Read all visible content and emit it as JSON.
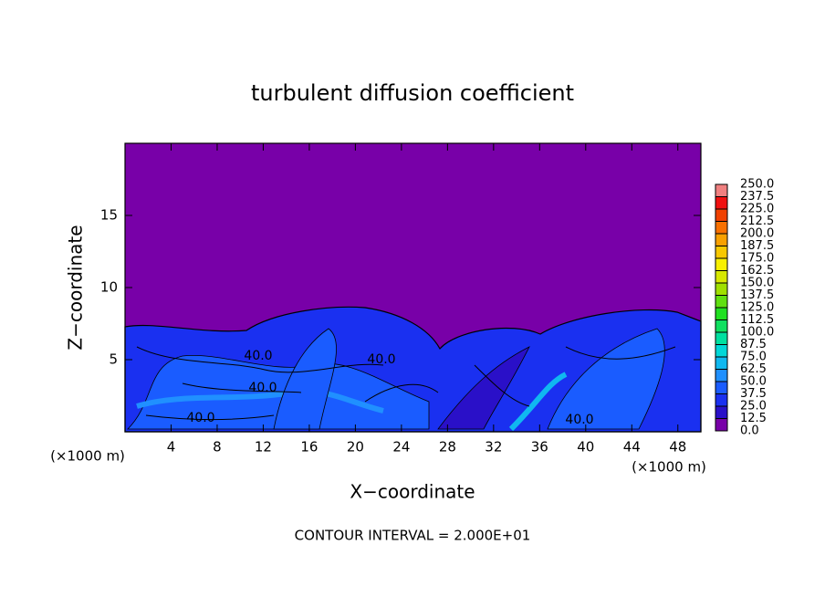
{
  "chart_data": {
    "type": "contour",
    "title": "turbulent diffusion coefficient",
    "xlabel": "X−coordinate",
    "ylabel": "Z−coordinate",
    "x_unit_label": "(×1000 m)",
    "footer": "CONTOUR INTERVAL = 2.000E+01",
    "xlim": [
      0,
      50
    ],
    "ylim": [
      0,
      20
    ],
    "xticks": [
      4,
      8,
      12,
      16,
      20,
      24,
      28,
      32,
      36,
      40,
      44,
      48
    ],
    "yticks": [
      5,
      10,
      15
    ],
    "contour_labels": [
      {
        "value": 40,
        "label": "40.0"
      },
      {
        "value": 40,
        "label": "40.0"
      },
      {
        "value": 40,
        "label": "40.0"
      },
      {
        "value": 40,
        "label": "40.0"
      },
      {
        "value": 40,
        "label": "40.0"
      }
    ],
    "colorbar": {
      "ticks": [
        {
          "value": 0,
          "label": "0.0"
        },
        {
          "value": 12.5,
          "label": "12.5"
        },
        {
          "value": 25,
          "label": "25.0"
        },
        {
          "value": 37.5,
          "label": "37.5"
        },
        {
          "value": 50,
          "label": "50.0"
        },
        {
          "value": 62.5,
          "label": "62.5"
        },
        {
          "value": 75,
          "label": "75.0"
        },
        {
          "value": 87.5,
          "label": "87.5"
        },
        {
          "value": 100,
          "label": "100.0"
        },
        {
          "value": 112.5,
          "label": "112.5"
        },
        {
          "value": 125,
          "label": "125.0"
        },
        {
          "value": 137.5,
          "label": "137.5"
        },
        {
          "value": 150,
          "label": "150.0"
        },
        {
          "value": 162.5,
          "label": "162.5"
        },
        {
          "value": 175,
          "label": "175.0"
        },
        {
          "value": 187.5,
          "label": "187.5"
        },
        {
          "value": 200,
          "label": "200.0"
        },
        {
          "value": 212.5,
          "label": "212.5"
        },
        {
          "value": 225,
          "label": "225.0"
        },
        {
          "value": 237.5,
          "label": "237.5"
        },
        {
          "value": 250,
          "label": "250.0"
        }
      ],
      "colors": [
        "#7800a8",
        "#2a10c8",
        "#1a30f0",
        "#1a5cff",
        "#2090ff",
        "#10b8f0",
        "#00d8d8",
        "#00e0a0",
        "#10e060",
        "#20e020",
        "#60e010",
        "#a0e000",
        "#d8e800",
        "#f8f000",
        "#f8c800",
        "#f8a000",
        "#f87000",
        "#f04000",
        "#f01010",
        "#f08080"
      ]
    }
  }
}
